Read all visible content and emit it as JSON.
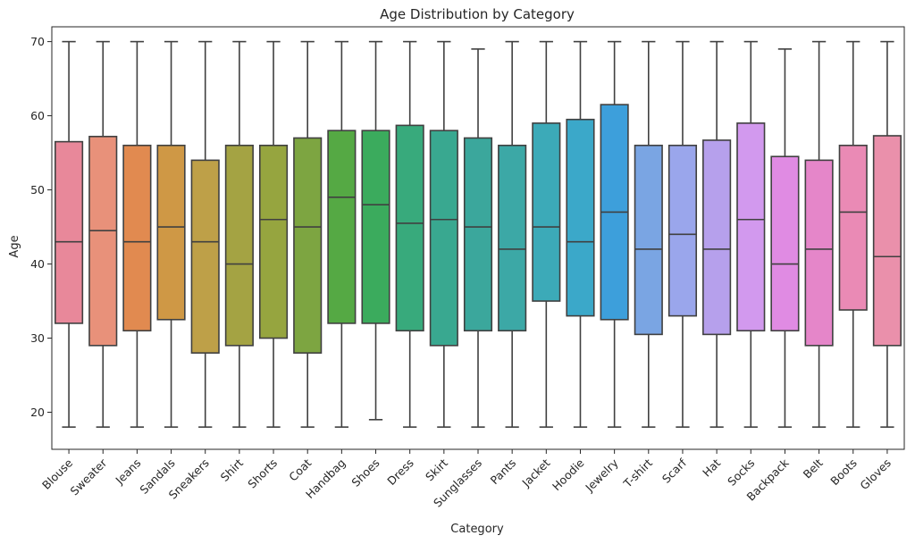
{
  "chart_data": {
    "type": "boxplot",
    "title": "Age Distribution by Category",
    "xlabel": "Category",
    "ylabel": "Age",
    "ylim": [
      15,
      72
    ],
    "yticks": [
      20,
      30,
      40,
      50,
      60,
      70
    ],
    "grid": false,
    "legend": "none",
    "categories": [
      "Blouse",
      "Sweater",
      "Jeans",
      "Sandals",
      "Sneakers",
      "Shirt",
      "Shorts",
      "Coat",
      "Handbag",
      "Shoes",
      "Dress",
      "Skirt",
      "Sunglasses",
      "Pants",
      "Jacket",
      "Hoodie",
      "Jewelry",
      "T-shirt",
      "Scarf",
      "Hat",
      "Socks",
      "Backpack",
      "Belt",
      "Boots",
      "Gloves"
    ],
    "colors": [
      "#e8889a",
      "#e8917a",
      "#e18a50",
      "#cf9845",
      "#bea048",
      "#a4a343",
      "#96a53f",
      "#7da541",
      "#55a944",
      "#3bab5d",
      "#38aa7c",
      "#39a890",
      "#3ba79c",
      "#3ca8a6",
      "#3caab8",
      "#3ba8c9",
      "#3d9fdb",
      "#7aa5e3",
      "#9aa6ec",
      "#b6a0ec",
      "#d299ee",
      "#e08be3",
      "#e586c9",
      "#ea8ab5",
      "#ea90ab"
    ],
    "series": [
      {
        "min": 18,
        "q1": 32,
        "median": 43,
        "q3": 56.5,
        "max": 70
      },
      {
        "min": 18,
        "q1": 29,
        "median": 44.5,
        "q3": 57.2,
        "max": 70
      },
      {
        "min": 18,
        "q1": 31,
        "median": 43,
        "q3": 56,
        "max": 70
      },
      {
        "min": 18,
        "q1": 32.5,
        "median": 45,
        "q3": 56,
        "max": 70
      },
      {
        "min": 18,
        "q1": 28,
        "median": 43,
        "q3": 54,
        "max": 70
      },
      {
        "min": 18,
        "q1": 29,
        "median": 40,
        "q3": 56,
        "max": 70
      },
      {
        "min": 18,
        "q1": 30,
        "median": 46,
        "q3": 56,
        "max": 70
      },
      {
        "min": 18,
        "q1": 28,
        "median": 45,
        "q3": 57,
        "max": 70
      },
      {
        "min": 18,
        "q1": 32,
        "median": 49,
        "q3": 58,
        "max": 70
      },
      {
        "min": 19,
        "q1": 32,
        "median": 48,
        "q3": 58,
        "max": 70
      },
      {
        "min": 18,
        "q1": 31,
        "median": 45.5,
        "q3": 58.7,
        "max": 70
      },
      {
        "min": 18,
        "q1": 29,
        "median": 46,
        "q3": 58,
        "max": 70
      },
      {
        "min": 18,
        "q1": 31,
        "median": 45,
        "q3": 57,
        "max": 69
      },
      {
        "min": 18,
        "q1": 31,
        "median": 42,
        "q3": 56,
        "max": 70
      },
      {
        "min": 18,
        "q1": 35,
        "median": 45,
        "q3": 59,
        "max": 70
      },
      {
        "min": 18,
        "q1": 33,
        "median": 43,
        "q3": 59.5,
        "max": 70
      },
      {
        "min": 18,
        "q1": 32.5,
        "median": 47,
        "q3": 61.5,
        "max": 70
      },
      {
        "min": 18,
        "q1": 30.5,
        "median": 42,
        "q3": 56,
        "max": 70
      },
      {
        "min": 18,
        "q1": 33,
        "median": 44,
        "q3": 56,
        "max": 70
      },
      {
        "min": 18,
        "q1": 30.5,
        "median": 42,
        "q3": 56.7,
        "max": 70
      },
      {
        "min": 18,
        "q1": 31,
        "median": 46,
        "q3": 59,
        "max": 70
      },
      {
        "min": 18,
        "q1": 31,
        "median": 40,
        "q3": 54.5,
        "max": 69
      },
      {
        "min": 18,
        "q1": 29,
        "median": 42,
        "q3": 54,
        "max": 70
      },
      {
        "min": 18,
        "q1": 33.8,
        "median": 47,
        "q3": 56,
        "max": 70
      },
      {
        "min": 18,
        "q1": 29,
        "median": 41,
        "q3": 57.3,
        "max": 70
      }
    ]
  }
}
